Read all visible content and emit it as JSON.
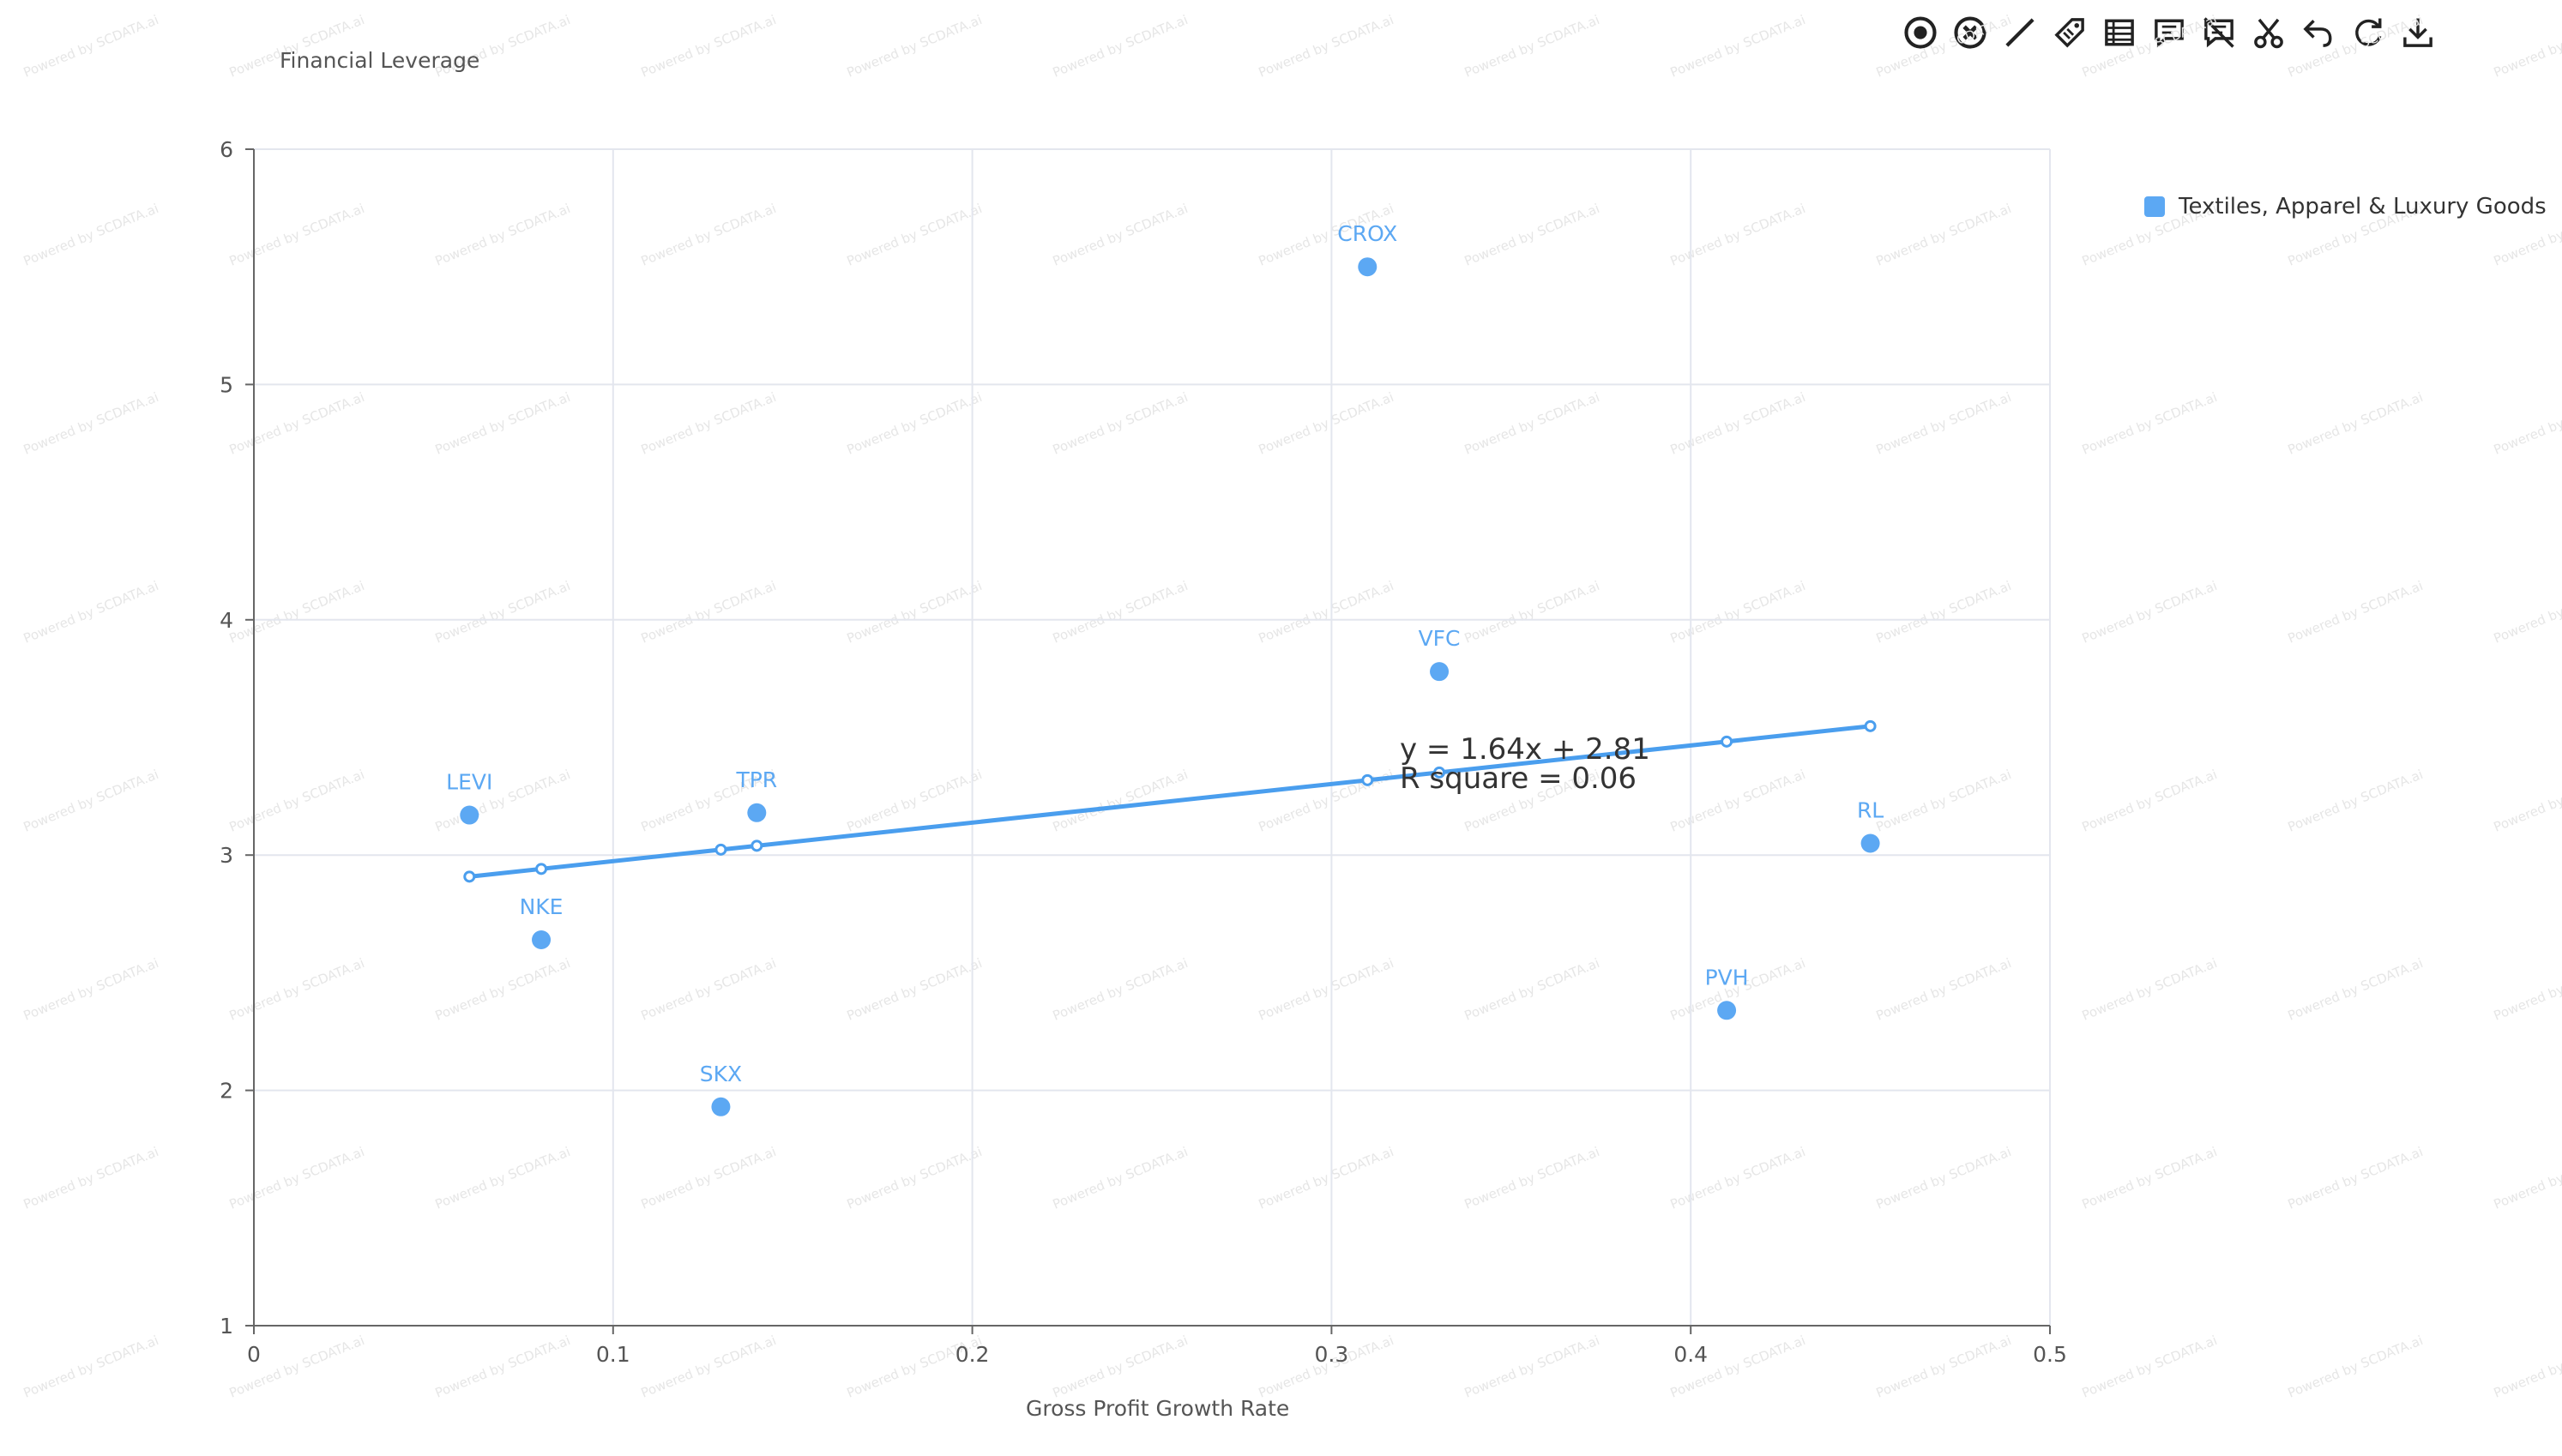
{
  "colors": {
    "series": "#5ca8f3",
    "trend": "#4a9eee",
    "grid": "#e3e6ee",
    "axis": "#666666",
    "tick_text": "#555555",
    "equation_text": "#333333",
    "watermark": "#e6e6e6"
  },
  "toolbar": {
    "items": [
      {
        "name": "target-icon"
      },
      {
        "name": "clear-icon"
      },
      {
        "name": "line-icon"
      },
      {
        "name": "tag-icon"
      },
      {
        "name": "table-icon"
      },
      {
        "name": "comment-icon"
      },
      {
        "name": "comment-off-icon"
      },
      {
        "name": "scissors-icon"
      },
      {
        "name": "undo-icon"
      },
      {
        "name": "refresh-icon"
      },
      {
        "name": "download-icon"
      }
    ]
  },
  "watermark": {
    "text": "Powered by SCDATA.ai"
  },
  "chart_data": {
    "type": "scatter",
    "xlabel": "Gross Profit Growth Rate",
    "ylabel": "Financial Leverage",
    "xlim": [
      0,
      0.5
    ],
    "ylim": [
      1,
      6
    ],
    "x_ticks": [
      "0",
      "0.1",
      "0.2",
      "0.3",
      "0.4",
      "0.5"
    ],
    "y_ticks": [
      "1",
      "2",
      "3",
      "4",
      "5",
      "6"
    ],
    "grid": true,
    "legend_position": "top-right",
    "series": [
      {
        "name": "Textiles, Apparel & Luxury Goods",
        "points": [
          {
            "label": "CROX",
            "x": 0.31,
            "y": 5.5
          },
          {
            "label": "VFC",
            "x": 0.33,
            "y": 3.78
          },
          {
            "label": "LEVI",
            "x": 0.06,
            "y": 3.17
          },
          {
            "label": "TPR",
            "x": 0.14,
            "y": 3.18
          },
          {
            "label": "RL",
            "x": 0.45,
            "y": 3.05
          },
          {
            "label": "NKE",
            "x": 0.08,
            "y": 2.64
          },
          {
            "label": "PVH",
            "x": 0.41,
            "y": 2.34
          },
          {
            "label": "SKX",
            "x": 0.13,
            "y": 1.93
          }
        ]
      }
    ],
    "trendline": {
      "slope": 1.64,
      "intercept": 2.81,
      "x_points": [
        0.06,
        0.08,
        0.13,
        0.14,
        0.31,
        0.33,
        0.41,
        0.45
      ],
      "equation": "y = 1.64x + 2.81",
      "r_square": "R square = 0.06"
    }
  }
}
